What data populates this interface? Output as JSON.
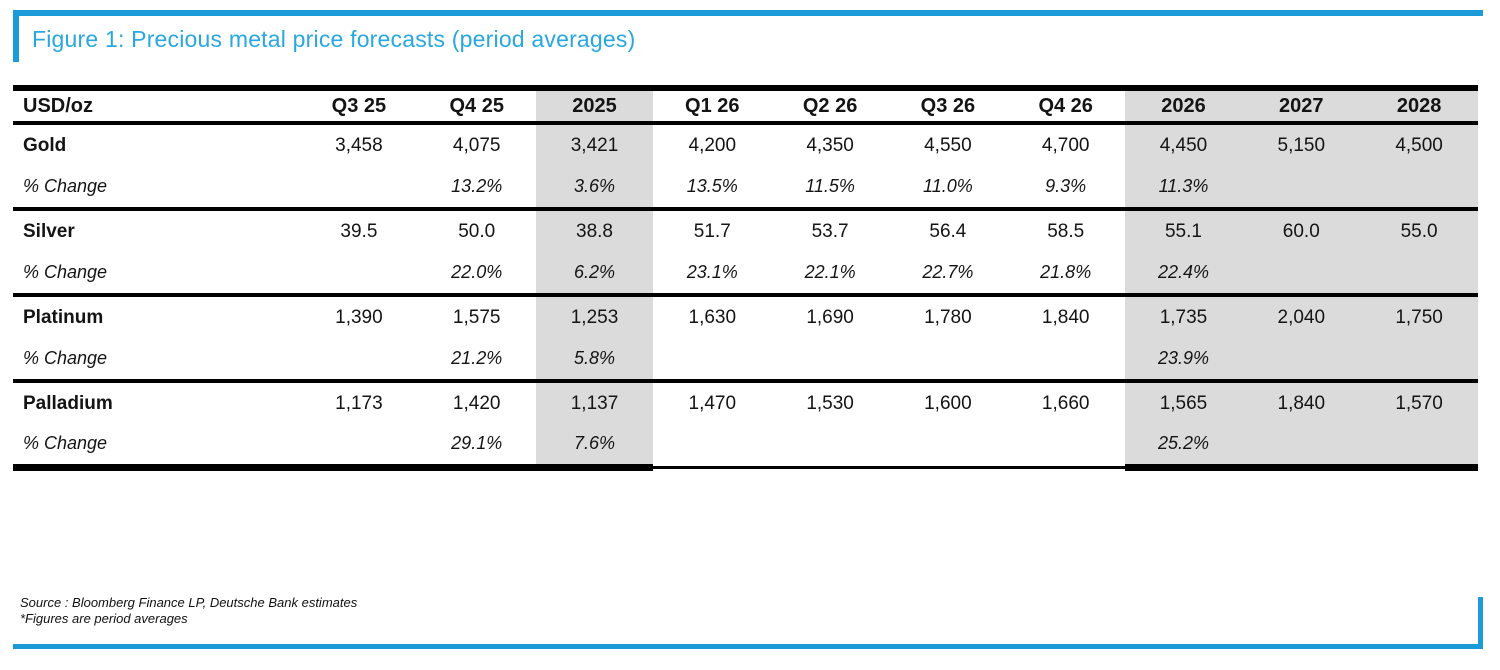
{
  "figure": {
    "title": "Figure 1: Precious metal price forecasts (period averages)"
  },
  "table": {
    "unit_label": "USD/oz",
    "change_label": "% Change",
    "columns": [
      {
        "label": "Q3 25",
        "shaded": false
      },
      {
        "label": "Q4 25",
        "shaded": false
      },
      {
        "label": "2025",
        "shaded": true
      },
      {
        "label": "Q1 26",
        "shaded": false
      },
      {
        "label": "Q2 26",
        "shaded": false
      },
      {
        "label": "Q3 26",
        "shaded": false
      },
      {
        "label": "Q4 26",
        "shaded": false
      },
      {
        "label": "2026",
        "shaded": true
      },
      {
        "label": "2027",
        "shaded": true
      },
      {
        "label": "2028",
        "shaded": true
      }
    ],
    "rows": [
      {
        "metal": "Gold",
        "values": [
          "3,458",
          "4,075",
          "3,421",
          "4,200",
          "4,350",
          "4,550",
          "4,700",
          "4,450",
          "5,150",
          "4,500"
        ],
        "changes": [
          "",
          "13.2%",
          "3.6%",
          "13.5%",
          "11.5%",
          "11.0%",
          "9.3%",
          "11.3%",
          "",
          ""
        ]
      },
      {
        "metal": "Silver",
        "values": [
          "39.5",
          "50.0",
          "38.8",
          "51.7",
          "53.7",
          "56.4",
          "58.5",
          "55.1",
          "60.0",
          "55.0"
        ],
        "changes": [
          "",
          "22.0%",
          "6.2%",
          "23.1%",
          "22.1%",
          "22.7%",
          "21.8%",
          "22.4%",
          "",
          ""
        ]
      },
      {
        "metal": "Platinum",
        "values": [
          "1,390",
          "1,575",
          "1,253",
          "1,630",
          "1,690",
          "1,780",
          "1,840",
          "1,735",
          "2,040",
          "1,750"
        ],
        "changes": [
          "",
          "21.2%",
          "5.8%",
          "",
          "",
          "",
          "",
          "23.9%",
          "",
          ""
        ]
      },
      {
        "metal": "Palladium",
        "values": [
          "1,173",
          "1,420",
          "1,137",
          "1,470",
          "1,530",
          "1,600",
          "1,660",
          "1,565",
          "1,840",
          "1,570"
        ],
        "changes": [
          "",
          "29.1%",
          "7.6%",
          "",
          "",
          "",
          "",
          "25.2%",
          "",
          ""
        ]
      }
    ]
  },
  "footer": {
    "source": "Source : Bloomberg Finance LP, Deutsche Bank estimates",
    "note": "*Figures are period averages"
  },
  "colors": {
    "accent_blue": "#1b9cd8",
    "title_blue": "#29a7e0",
    "shade_gray": "#dbdbdb",
    "rule_black": "#000000"
  }
}
